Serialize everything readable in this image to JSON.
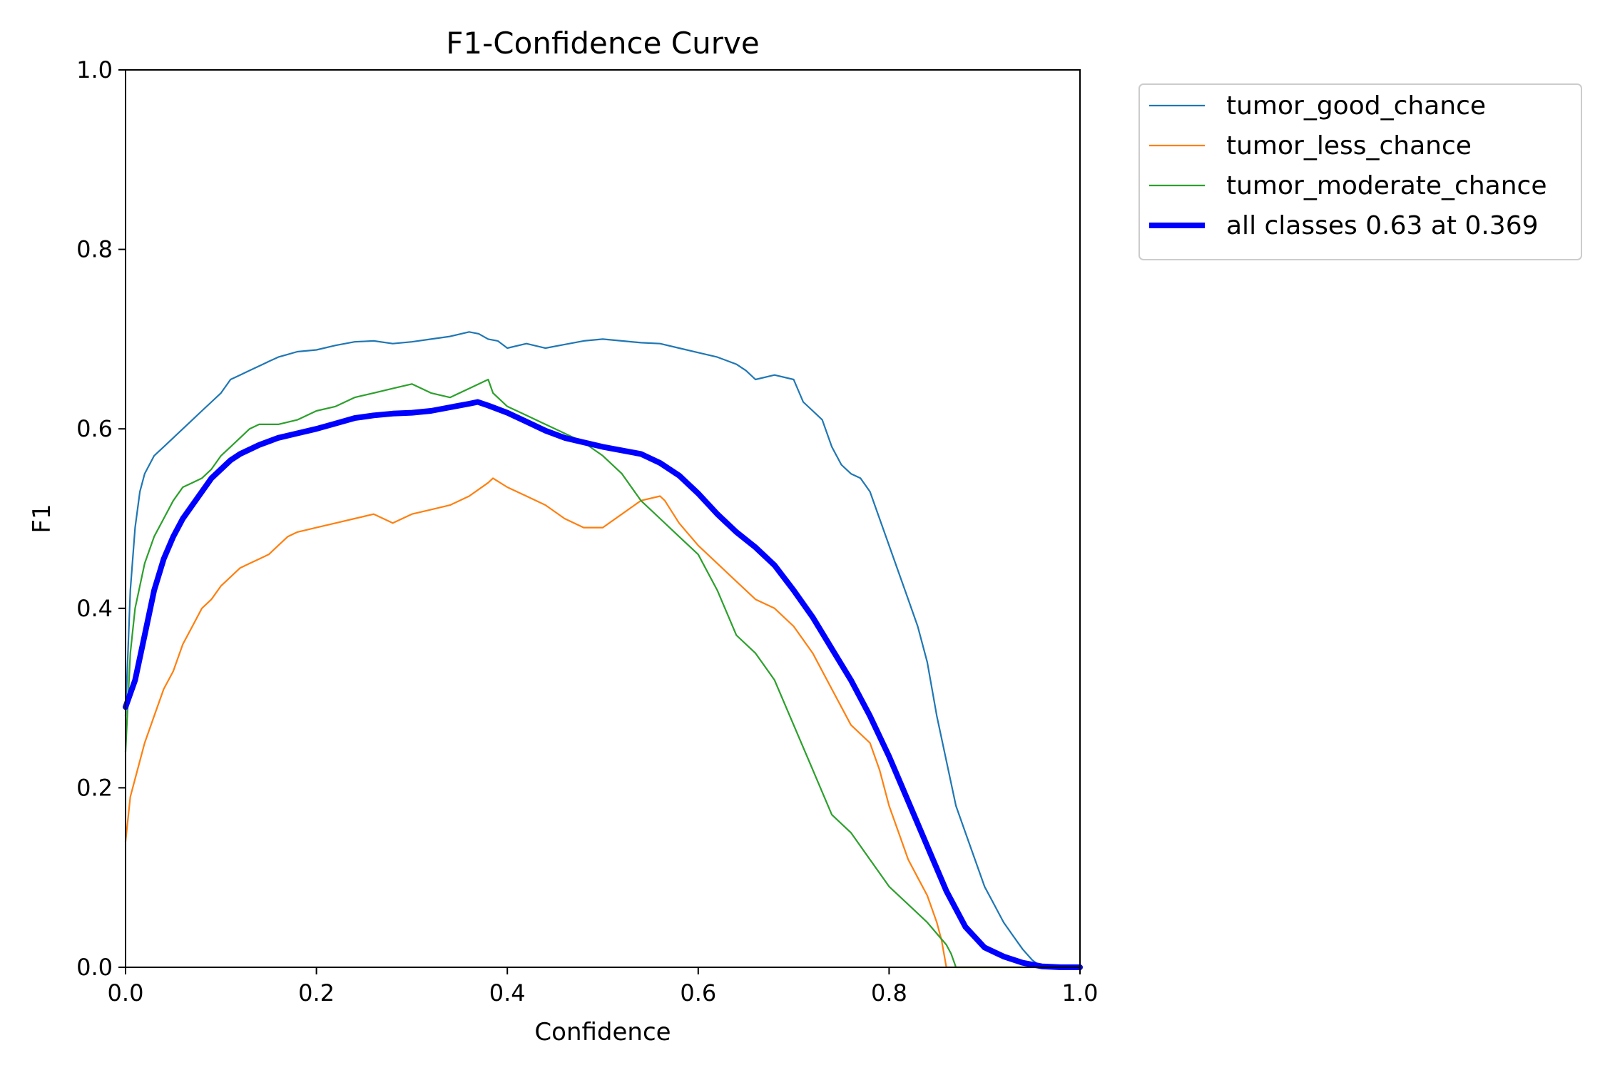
{
  "chart_data": {
    "type": "line",
    "title": "F1-Confidence Curve",
    "xlabel": "Confidence",
    "ylabel": "F1",
    "xlim": [
      0.0,
      1.0
    ],
    "ylim": [
      0.0,
      1.0
    ],
    "xticks": [
      "0.0",
      "0.2",
      "0.4",
      "0.6",
      "0.8",
      "1.0"
    ],
    "yticks": [
      "0.0",
      "0.2",
      "0.4",
      "0.6",
      "0.8",
      "1.0"
    ],
    "grid": false,
    "legend_position": "outside-upper-right",
    "series": [
      {
        "name": "tumor_good_chance",
        "color": "#1f77b4",
        "x": [
          0.0,
          0.005,
          0.01,
          0.015,
          0.02,
          0.03,
          0.04,
          0.05,
          0.06,
          0.07,
          0.08,
          0.09,
          0.1,
          0.11,
          0.12,
          0.13,
          0.14,
          0.15,
          0.16,
          0.17,
          0.18,
          0.2,
          0.22,
          0.24,
          0.26,
          0.28,
          0.3,
          0.32,
          0.34,
          0.36,
          0.37,
          0.38,
          0.39,
          0.4,
          0.42,
          0.44,
          0.46,
          0.48,
          0.5,
          0.52,
          0.54,
          0.56,
          0.58,
          0.6,
          0.62,
          0.64,
          0.65,
          0.66,
          0.68,
          0.7,
          0.71,
          0.72,
          0.73,
          0.74,
          0.75,
          0.76,
          0.77,
          0.78,
          0.79,
          0.8,
          0.81,
          0.82,
          0.83,
          0.84,
          0.85,
          0.86,
          0.87,
          0.88,
          0.89,
          0.9,
          0.91,
          0.92,
          0.93,
          0.94,
          0.95,
          0.96,
          0.98,
          1.0
        ],
        "y": [
          0.28,
          0.42,
          0.49,
          0.53,
          0.55,
          0.57,
          0.58,
          0.59,
          0.6,
          0.61,
          0.62,
          0.63,
          0.64,
          0.655,
          0.66,
          0.665,
          0.67,
          0.675,
          0.68,
          0.683,
          0.686,
          0.688,
          0.693,
          0.697,
          0.698,
          0.695,
          0.697,
          0.7,
          0.703,
          0.708,
          0.706,
          0.7,
          0.698,
          0.69,
          0.695,
          0.69,
          0.694,
          0.698,
          0.7,
          0.698,
          0.696,
          0.695,
          0.69,
          0.685,
          0.68,
          0.672,
          0.665,
          0.655,
          0.66,
          0.655,
          0.63,
          0.62,
          0.61,
          0.58,
          0.56,
          0.55,
          0.545,
          0.53,
          0.5,
          0.47,
          0.44,
          0.41,
          0.38,
          0.34,
          0.28,
          0.23,
          0.18,
          0.15,
          0.12,
          0.09,
          0.07,
          0.05,
          0.035,
          0.02,
          0.008,
          0.0,
          0.0,
          0.0
        ]
      },
      {
        "name": "tumor_less_chance",
        "color": "#ff7f0e",
        "x": [
          0.0,
          0.005,
          0.01,
          0.02,
          0.03,
          0.04,
          0.05,
          0.06,
          0.07,
          0.08,
          0.09,
          0.1,
          0.11,
          0.12,
          0.13,
          0.14,
          0.15,
          0.16,
          0.17,
          0.18,
          0.2,
          0.22,
          0.24,
          0.26,
          0.27,
          0.28,
          0.3,
          0.32,
          0.34,
          0.36,
          0.38,
          0.385,
          0.4,
          0.42,
          0.44,
          0.46,
          0.48,
          0.5,
          0.52,
          0.54,
          0.56,
          0.565,
          0.58,
          0.6,
          0.62,
          0.64,
          0.66,
          0.68,
          0.7,
          0.72,
          0.74,
          0.76,
          0.78,
          0.79,
          0.8,
          0.81,
          0.82,
          0.83,
          0.84,
          0.85,
          0.855,
          0.86,
          0.9,
          1.0
        ],
        "y": [
          0.14,
          0.19,
          0.21,
          0.25,
          0.28,
          0.31,
          0.33,
          0.36,
          0.38,
          0.4,
          0.41,
          0.425,
          0.435,
          0.445,
          0.45,
          0.455,
          0.46,
          0.47,
          0.48,
          0.485,
          0.49,
          0.495,
          0.5,
          0.505,
          0.5,
          0.495,
          0.505,
          0.51,
          0.515,
          0.525,
          0.54,
          0.545,
          0.535,
          0.525,
          0.515,
          0.5,
          0.49,
          0.49,
          0.505,
          0.52,
          0.525,
          0.52,
          0.495,
          0.47,
          0.45,
          0.43,
          0.41,
          0.4,
          0.38,
          0.35,
          0.31,
          0.27,
          0.25,
          0.22,
          0.18,
          0.15,
          0.12,
          0.1,
          0.08,
          0.05,
          0.03,
          0.0,
          0.0,
          0.0
        ]
      },
      {
        "name": "tumor_moderate_chance",
        "color": "#2ca02c",
        "x": [
          0.0,
          0.005,
          0.01,
          0.02,
          0.03,
          0.04,
          0.05,
          0.06,
          0.07,
          0.08,
          0.09,
          0.1,
          0.11,
          0.12,
          0.13,
          0.14,
          0.16,
          0.18,
          0.2,
          0.22,
          0.24,
          0.26,
          0.28,
          0.3,
          0.32,
          0.34,
          0.36,
          0.38,
          0.385,
          0.4,
          0.42,
          0.44,
          0.46,
          0.48,
          0.5,
          0.52,
          0.54,
          0.56,
          0.58,
          0.6,
          0.62,
          0.64,
          0.66,
          0.68,
          0.7,
          0.72,
          0.74,
          0.76,
          0.78,
          0.8,
          0.82,
          0.84,
          0.86,
          0.865,
          0.87,
          0.9,
          1.0
        ],
        "y": [
          0.24,
          0.35,
          0.4,
          0.45,
          0.48,
          0.5,
          0.52,
          0.535,
          0.54,
          0.545,
          0.555,
          0.57,
          0.58,
          0.59,
          0.6,
          0.605,
          0.605,
          0.61,
          0.62,
          0.625,
          0.635,
          0.64,
          0.645,
          0.65,
          0.64,
          0.635,
          0.645,
          0.655,
          0.64,
          0.625,
          0.615,
          0.605,
          0.595,
          0.585,
          0.57,
          0.55,
          0.52,
          0.5,
          0.48,
          0.46,
          0.42,
          0.37,
          0.35,
          0.32,
          0.27,
          0.22,
          0.17,
          0.15,
          0.12,
          0.09,
          0.07,
          0.05,
          0.025,
          0.015,
          0.0,
          0.0,
          0.0
        ]
      },
      {
        "name": "all classes 0.63 at 0.369",
        "color": "#0000ff",
        "emphasis": true,
        "x": [
          0.0,
          0.01,
          0.02,
          0.03,
          0.04,
          0.05,
          0.06,
          0.07,
          0.08,
          0.09,
          0.1,
          0.11,
          0.12,
          0.14,
          0.16,
          0.18,
          0.2,
          0.22,
          0.24,
          0.26,
          0.28,
          0.3,
          0.32,
          0.34,
          0.36,
          0.369,
          0.38,
          0.4,
          0.42,
          0.44,
          0.46,
          0.48,
          0.5,
          0.52,
          0.54,
          0.56,
          0.58,
          0.6,
          0.62,
          0.64,
          0.66,
          0.68,
          0.7,
          0.72,
          0.74,
          0.76,
          0.78,
          0.8,
          0.82,
          0.84,
          0.86,
          0.88,
          0.9,
          0.92,
          0.94,
          0.96,
          0.98,
          1.0
        ],
        "y": [
          0.29,
          0.32,
          0.37,
          0.42,
          0.455,
          0.48,
          0.5,
          0.515,
          0.53,
          0.545,
          0.555,
          0.565,
          0.572,
          0.582,
          0.59,
          0.595,
          0.6,
          0.606,
          0.612,
          0.615,
          0.617,
          0.618,
          0.62,
          0.624,
          0.628,
          0.63,
          0.626,
          0.618,
          0.608,
          0.598,
          0.59,
          0.585,
          0.58,
          0.576,
          0.572,
          0.562,
          0.548,
          0.528,
          0.505,
          0.485,
          0.468,
          0.448,
          0.42,
          0.39,
          0.355,
          0.32,
          0.28,
          0.235,
          0.185,
          0.135,
          0.085,
          0.045,
          0.022,
          0.012,
          0.005,
          0.001,
          0.0,
          0.0
        ]
      }
    ]
  }
}
